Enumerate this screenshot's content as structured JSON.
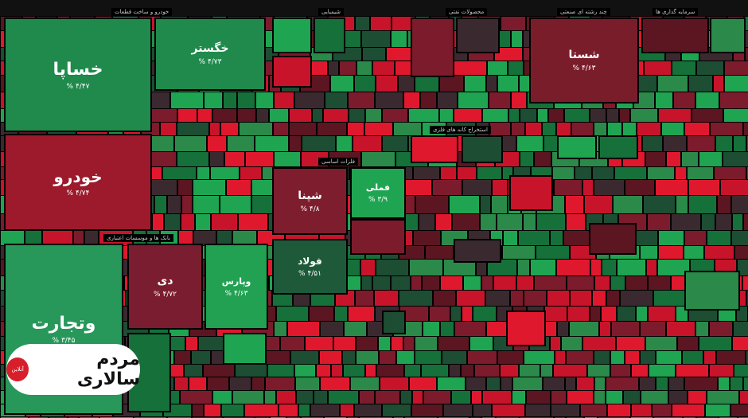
{
  "sectors": [
    "خودرو و ساخت قطعات",
    "بانک ها و موسسات اعتباری",
    "شیمیایی",
    "فلزات اساسی",
    "محصولات نفتی",
    "چند رشته ای صنعتی",
    "سرمایه گذاری ها",
    "استخراج کانه های فلزی"
  ],
  "tiles": [
    {
      "symbol": "خساپا",
      "change": "۴/۴۷ %"
    },
    {
      "symbol": "خودرو",
      "change": "۴/۷۴ %"
    },
    {
      "symbol": "وتجارت",
      "change": "۳/۴۵ %"
    },
    {
      "symbol": "خگستر",
      "change": "۴/۷۳ %"
    },
    {
      "symbol": "دی",
      "change": "۴/۷۲ %"
    },
    {
      "symbol": "وپارس",
      "change": "۴/۶۳ %"
    },
    {
      "symbol": "شپنا",
      "change": "۴/۸ %"
    },
    {
      "symbol": "فولاد",
      "change": "۴/۵۱ %"
    },
    {
      "symbol": "شستا",
      "change": "۴/۶۳ %"
    },
    {
      "symbol": "فملی",
      "change": "۳/۹ %"
    }
  ],
  "watermark": {
    "brand": "مردم سالاری",
    "badge": "آنلاین"
  }
}
